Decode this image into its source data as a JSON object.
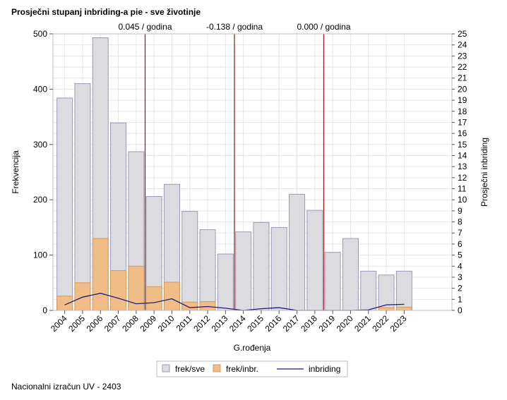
{
  "title": "Prosječni stupanj inbriding-a pie - sve životinje",
  "footnote": "Nacionalni izračun UV - 2403",
  "chart_data": {
    "type": "bar",
    "categories": [
      "2004",
      "2005",
      "2006",
      "2007",
      "2008",
      "2009",
      "2010",
      "2011",
      "2012",
      "2013",
      "2014",
      "2015",
      "2016",
      "2017",
      "2018",
      "2019",
      "2020",
      "2021",
      "2022",
      "2023"
    ],
    "series": [
      {
        "name": "frek/sve",
        "type": "bar",
        "axis": "left",
        "color": "#dcdce0",
        "values": [
          384,
          410,
          493,
          339,
          287,
          206,
          228,
          179,
          146,
          102,
          142,
          159,
          150,
          210,
          181,
          105,
          130,
          71,
          64,
          71
        ]
      },
      {
        "name": "frek/inbr.",
        "type": "bar",
        "axis": "left",
        "color": "#f0bd88",
        "values": [
          26,
          50,
          130,
          72,
          80,
          43,
          51,
          15,
          16,
          0,
          0,
          0,
          0,
          0,
          0,
          0,
          0,
          0,
          5,
          6
        ]
      },
      {
        "name": "inbriding",
        "type": "line",
        "axis": "right",
        "color": "#1e1e78",
        "values": [
          0.5,
          1.2,
          1.55,
          1.1,
          0.6,
          0.7,
          1.05,
          0.25,
          0.35,
          0.2,
          0.0,
          0.15,
          0.25,
          0.0,
          0.0,
          0.0,
          0.0,
          0.05,
          0.5,
          0.55
        ]
      }
    ],
    "xlabel": "G.rođenja",
    "ylabel": "Frekvencija",
    "y2label": "Prosječni inbriding",
    "ylim": [
      0,
      500
    ],
    "y2lim": [
      0,
      25
    ],
    "yticks": [
      0,
      100,
      200,
      300,
      400,
      500
    ],
    "y2ticks": [
      0,
      1,
      2,
      3,
      4,
      5,
      6,
      7,
      8,
      9,
      10,
      11,
      12,
      13,
      14,
      15,
      16,
      17,
      18,
      19,
      20,
      21,
      22,
      23,
      24,
      25
    ],
    "grid": true,
    "legend_position": "bottom",
    "reference_lines": [
      {
        "x_between": [
          "2008",
          "2009"
        ],
        "label": "0.045 / godina"
      },
      {
        "x_between": [
          "2013",
          "2014"
        ],
        "label": "-0.138 / godina"
      },
      {
        "x_between": [
          "2018",
          "2019"
        ],
        "label": "0.000 / godina"
      }
    ],
    "ref_color": "#8b1a1a"
  }
}
